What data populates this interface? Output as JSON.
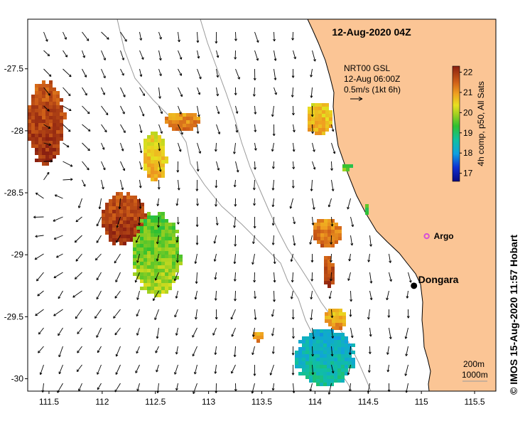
{
  "title": "12-Aug-2020 04Z",
  "legend": {
    "product": "NRT00 GSL",
    "time": "12-Aug 06:00Z",
    "scale_label": "0.5m/s (1kt 6h)"
  },
  "colorbar": {
    "label": "4h comp, p50, All Sats",
    "ticks": [
      "22",
      "21",
      "20",
      "19",
      "18",
      "17"
    ],
    "range": [
      16.6,
      22.3
    ]
  },
  "axes": {
    "x_ticks": [
      "111.5",
      "112",
      "112.5",
      "113",
      "113.5",
      "114",
      "114.5",
      "115",
      "115.5"
    ],
    "y_ticks": [
      "-27.5",
      "-28",
      "-28.5",
      "-29",
      "-29.5",
      "-30"
    ],
    "xlim": [
      111.3,
      115.7
    ],
    "ylim": [
      -30.1,
      -27.1
    ]
  },
  "places": [
    {
      "name": "Dongara",
      "lon": 114.93,
      "lat": -29.25
    },
    {
      "name": "Argo",
      "lon": 115.05,
      "lat": -28.85
    }
  ],
  "contours": {
    "c1": "200m",
    "c2": "1000m"
  },
  "credit": "© IMOS 15-Aug-2020 11:57 Hobart",
  "colors": {
    "land": "#fbc595",
    "arrow": "#000000",
    "argo": "#d64fd6",
    "coast": "#000000",
    "isobath": "#9a9a9a"
  }
}
